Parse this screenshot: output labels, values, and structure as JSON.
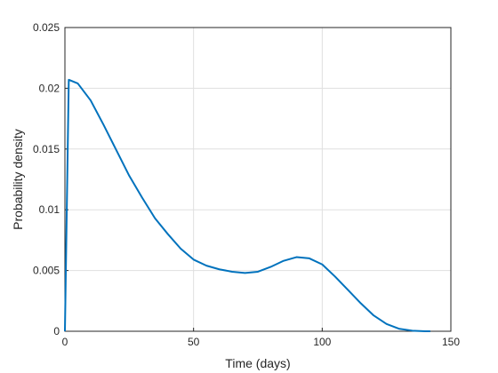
{
  "chart_data": {
    "type": "line",
    "x_label": "Time (days)",
    "y_label": "Probability density",
    "x": [
      0,
      1.5,
      5,
      10,
      15,
      20,
      25,
      30,
      35,
      40,
      45,
      50,
      55,
      60,
      65,
      70,
      75,
      80,
      85,
      90,
      95,
      100,
      105,
      110,
      115,
      120,
      125,
      130,
      135,
      140,
      142
    ],
    "series": [
      {
        "color": "#0072bd",
        "values": [
          0,
          0.0207,
          0.0204,
          0.019,
          0.017,
          0.0149,
          0.0128,
          0.011,
          0.0093,
          0.008,
          0.0068,
          0.0059,
          0.0054,
          0.0051,
          0.0049,
          0.0048,
          0.0049,
          0.0053,
          0.0058,
          0.0061,
          0.006,
          0.0055,
          0.0045,
          0.0034,
          0.0023,
          0.0013,
          0.0006,
          0.0002,
          5e-05,
          0,
          0
        ]
      }
    ],
    "xlim": [
      0,
      150
    ],
    "xticks": [
      0,
      50,
      100,
      150
    ],
    "ylim": [
      0,
      0.025
    ],
    "yticks": [
      0,
      0.005,
      0.01,
      0.015,
      0.02,
      0.025
    ],
    "grid": true
  }
}
